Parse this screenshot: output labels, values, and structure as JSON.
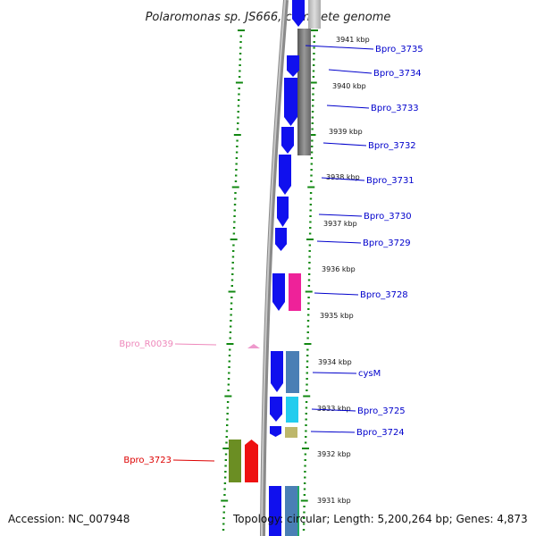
{
  "title": "Polaromonas sp. JS666, complete genome",
  "accession_label": "Accession: NC_007948",
  "topology_label": "Topology: circular; Length: 5,200,264 bp; Genes: 4,873",
  "colors": {
    "forward_gene": "#1010ee",
    "backbone": "#888888",
    "tick_green": "#118811",
    "label_blue": "#0000cc",
    "label_red": "#dd0000",
    "label_pink": "#ee88bb",
    "rna_pink": "#ee2299",
    "olive": "#6b8e23",
    "red_gene": "#ee1111",
    "steel": "#4a7fb5",
    "cyan": "#22ccee",
    "khaki": "#bdb76b",
    "gray_block": "#777777"
  },
  "kbp_ticks": [
    "3941 kbp",
    "3940 kbp",
    "3939 kbp",
    "3938 kbp",
    "3937 kbp",
    "3936 kbp",
    "3935 kbp",
    "3934 kbp",
    "3933 kbp",
    "3932 kbp",
    "3931 kbp"
  ],
  "gene_labels": [
    {
      "name": "Bpro_3735",
      "color": "label_blue"
    },
    {
      "name": "Bpro_3734",
      "color": "label_blue"
    },
    {
      "name": "Bpro_3733",
      "color": "label_blue"
    },
    {
      "name": "Bpro_3732",
      "color": "label_blue"
    },
    {
      "name": "Bpro_3731",
      "color": "label_blue"
    },
    {
      "name": "Bpro_3730",
      "color": "label_blue"
    },
    {
      "name": "Bpro_3729",
      "color": "label_blue"
    },
    {
      "name": "Bpro_3728",
      "color": "label_blue"
    },
    {
      "name": "cysM",
      "color": "label_blue"
    },
    {
      "name": "Bpro_3725",
      "color": "label_blue"
    },
    {
      "name": "Bpro_3724",
      "color": "label_blue"
    },
    {
      "name": "Bpro_R0039",
      "color": "label_pink"
    },
    {
      "name": "Bpro_3723",
      "color": "label_red"
    }
  ]
}
